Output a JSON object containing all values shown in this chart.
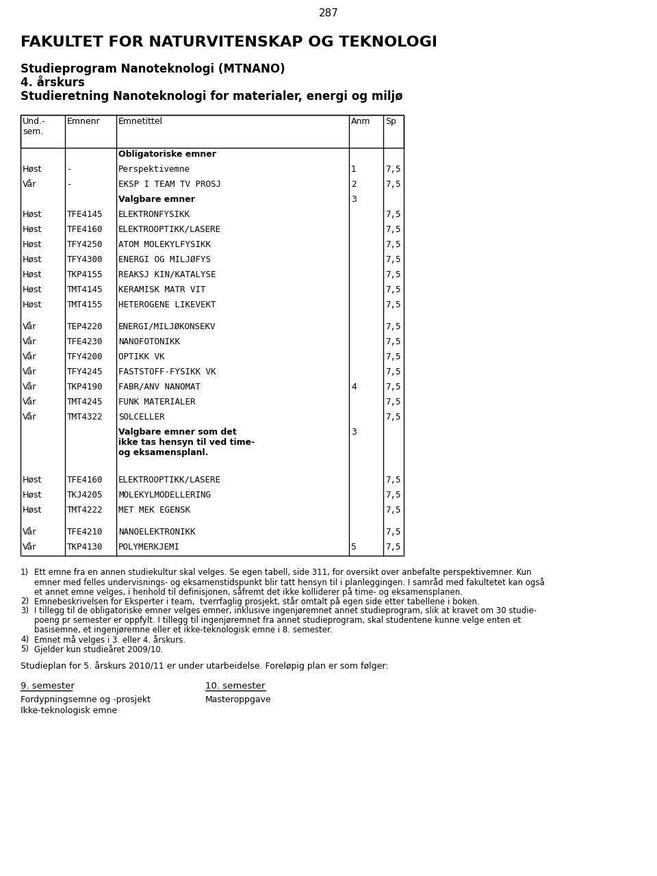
{
  "page_number": "287",
  "title1": "FAKULTET FOR NATURVITENSKAP OG TEKNOLOGI",
  "title2": "Studieprogram Nanoteknologi (MTNANO)",
  "title3": "4. årskurs",
  "title4": "Studieretning Nanoteknologi for materialer, energi og miljø",
  "table_rows": [
    {
      "sem": "",
      "code": "",
      "title": "Obligatoriske emner",
      "anm": "",
      "sp": "",
      "bold_title": true,
      "spacer": false,
      "multiline": false,
      "monospace": false
    },
    {
      "sem": "Høst",
      "code": "-",
      "title": "Perspektivemne",
      "anm": "1",
      "sp": "7,5",
      "bold_title": false,
      "spacer": false,
      "multiline": false,
      "monospace": true
    },
    {
      "sem": "Vår",
      "code": "-",
      "title": "EKSP I TEAM TV PROSJ",
      "anm": "2",
      "sp": "7,5",
      "bold_title": false,
      "spacer": false,
      "multiline": false,
      "monospace": true
    },
    {
      "sem": "",
      "code": "",
      "title": "Valgbare emner",
      "anm": "3",
      "sp": "",
      "bold_title": true,
      "spacer": false,
      "multiline": false,
      "monospace": false
    },
    {
      "sem": "Høst",
      "code": "TFE4145",
      "title": "ELEKTRONFYSIKK",
      "anm": "",
      "sp": "7,5",
      "bold_title": false,
      "spacer": false,
      "multiline": false,
      "monospace": true
    },
    {
      "sem": "Høst",
      "code": "TFE4160",
      "title": "ELEKTROOPTIKK/LASERE",
      "anm": "",
      "sp": "7,5",
      "bold_title": false,
      "spacer": false,
      "multiline": false,
      "monospace": true
    },
    {
      "sem": "Høst",
      "code": "TFY4250",
      "title": "ATOM MOLEKYLFYSIKK",
      "anm": "",
      "sp": "7,5",
      "bold_title": false,
      "spacer": false,
      "multiline": false,
      "monospace": true
    },
    {
      "sem": "Høst",
      "code": "TFY4300",
      "title": "ENERGI OG MILJØFYS",
      "anm": "",
      "sp": "7,5",
      "bold_title": false,
      "spacer": false,
      "multiline": false,
      "monospace": true
    },
    {
      "sem": "Høst",
      "code": "TKP4155",
      "title": "REAKSJ KIN/KATALYSE",
      "anm": "",
      "sp": "7,5",
      "bold_title": false,
      "spacer": false,
      "multiline": false,
      "monospace": true
    },
    {
      "sem": "Høst",
      "code": "TMT4145",
      "title": "KERAMISK MATR VIT",
      "anm": "",
      "sp": "7,5",
      "bold_title": false,
      "spacer": false,
      "multiline": false,
      "monospace": true
    },
    {
      "sem": "Høst",
      "code": "TMT4155",
      "title": "HETEROGENE LIKEVEKT",
      "anm": "",
      "sp": "7,5",
      "bold_title": false,
      "spacer": false,
      "multiline": false,
      "monospace": true
    },
    {
      "sem": "",
      "code": "",
      "title": "",
      "anm": "",
      "sp": "",
      "bold_title": false,
      "spacer": true,
      "multiline": false,
      "monospace": false
    },
    {
      "sem": "Vår",
      "code": "TEP4220",
      "title": "ENERGI/MILJØKONSEKV",
      "anm": "",
      "sp": "7,5",
      "bold_title": false,
      "spacer": false,
      "multiline": false,
      "monospace": true
    },
    {
      "sem": "Vår",
      "code": "TFE4230",
      "title": "NANOFOTONIKK",
      "anm": "",
      "sp": "7,5",
      "bold_title": false,
      "spacer": false,
      "multiline": false,
      "monospace": true
    },
    {
      "sem": "Vår",
      "code": "TFY4200",
      "title": "OPTIKK VK",
      "anm": "",
      "sp": "7,5",
      "bold_title": false,
      "spacer": false,
      "multiline": false,
      "monospace": true
    },
    {
      "sem": "Vår",
      "code": "TFY4245",
      "title": "FASTSTOFF-FYSIKK VK",
      "anm": "",
      "sp": "7,5",
      "bold_title": false,
      "spacer": false,
      "multiline": false,
      "monospace": true
    },
    {
      "sem": "Vår",
      "code": "TKP4190",
      "title": "FABR/ANV NANOMAT",
      "anm": "4",
      "sp": "7,5",
      "bold_title": false,
      "spacer": false,
      "multiline": false,
      "monospace": true
    },
    {
      "sem": "Vår",
      "code": "TMT4245",
      "title": "FUNK MATERIALER",
      "anm": "",
      "sp": "7,5",
      "bold_title": false,
      "spacer": false,
      "multiline": false,
      "monospace": true
    },
    {
      "sem": "Vår",
      "code": "TMT4322",
      "title": "SOLCELLER",
      "anm": "",
      "sp": "7,5",
      "bold_title": false,
      "spacer": false,
      "multiline": false,
      "monospace": true
    },
    {
      "sem": "",
      "code": "",
      "title": "Valgbare emner som det\nikke tas hensyn til ved time-\nog eksamensplanl.",
      "anm": "3",
      "sp": "",
      "bold_title": true,
      "spacer": false,
      "multiline": true,
      "monospace": false
    },
    {
      "sem": "Høst",
      "code": "TFE4160",
      "title": "ELEKTROOPTIKK/LASERE",
      "anm": "",
      "sp": "7,5",
      "bold_title": false,
      "spacer": false,
      "multiline": false,
      "monospace": true
    },
    {
      "sem": "Høst",
      "code": "TKJ4205",
      "title": "MOLEKYLMODELLERING",
      "anm": "",
      "sp": "7,5",
      "bold_title": false,
      "spacer": false,
      "multiline": false,
      "monospace": true
    },
    {
      "sem": "Høst",
      "code": "TMT4222",
      "title": "MET MEK EGENSK",
      "anm": "",
      "sp": "7,5",
      "bold_title": false,
      "spacer": false,
      "multiline": false,
      "monospace": true
    },
    {
      "sem": "",
      "code": "",
      "title": "",
      "anm": "",
      "sp": "",
      "bold_title": false,
      "spacer": true,
      "multiline": false,
      "monospace": false
    },
    {
      "sem": "Vår",
      "code": "TFE4210",
      "title": "NANOELEKTRONIKK",
      "anm": "",
      "sp": "7,5",
      "bold_title": false,
      "spacer": false,
      "multiline": false,
      "monospace": true
    },
    {
      "sem": "Vår",
      "code": "TKP4130",
      "title": "POLYMERKJEMI",
      "anm": "5",
      "sp": "7,5",
      "bold_title": false,
      "spacer": false,
      "multiline": false,
      "monospace": true
    }
  ],
  "footnote_lines": [
    [
      "1)",
      "Ett emne fra en annen studiekultur skal velges. Se egen tabell, side 311, for oversikt over anbefalte perspektivemner. Kun"
    ],
    [
      "",
      "emner med felles undervisnings- og eksamenstidspunkt blir tatt hensyn til i planleggingen. I samråd med fakultetet kan også"
    ],
    [
      "",
      "et annet emne velges, i henhold til definisjonen, såfremt det ikke kolliderer på time- og eksamensplanen."
    ],
    [
      "2)",
      "Emnebeskrivelsen for Eksperter i team,  tverrfaglig prosjekt, står omtalt på egen side etter tabellene i boken."
    ],
    [
      "3)",
      "I tillegg til de obligatoriske emner velges emner, inklusive ingenjøremnet annet studieprogram, slik at kravet om 30 studie-"
    ],
    [
      "",
      "poeng pr semester er oppfylt. I tillegg til ingenjøremnet fra annet studieprogram, skal studentene kunne velge enten et"
    ],
    [
      "",
      "basisemne, et ingenjøremne eller et ikke-teknologisk emne i 8. semester."
    ],
    [
      "4)",
      "Emnet må velges i 3. eller 4. årskurs."
    ],
    [
      "5)",
      "Gjelder kun studieåret 2009/10."
    ]
  ],
  "studieplan_text": "Studieplan for 5. årskurs 2010/11 er under utarbeidelse. Foreløpig plan er som følger:",
  "sem9_header": "9. semester",
  "sem10_header": "10. semester",
  "sem_left_items": [
    "Fordypningsemne og -prosjekt",
    "Ikke-teknologisk emne"
  ],
  "sem_right_items": [
    "Masteroppgave"
  ],
  "background_color": "#ffffff"
}
